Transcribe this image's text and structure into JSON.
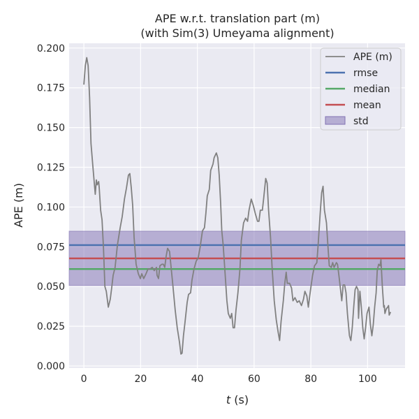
{
  "chart_data": {
    "type": "line",
    "title": "APE w.r.t. translation part (m)",
    "subtitle": "(with Sim(3) Umeyama alignment)",
    "xlabel_italic": "t",
    "xlabel_unit": " (s)",
    "ylabel": "APE (m)",
    "xlim": [
      -5.2,
      113.2
    ],
    "ylim": [
      -0.0013,
      0.203
    ],
    "xticks": [
      0,
      20,
      40,
      60,
      80,
      100
    ],
    "xtick_labels": [
      "0",
      "20",
      "40",
      "60",
      "80",
      "100"
    ],
    "yticks": [
      0,
      0.025,
      0.05,
      0.075,
      0.1,
      0.125,
      0.15,
      0.175,
      0.2
    ],
    "ytick_labels": [
      "0.000",
      "0.025",
      "0.050",
      "0.075",
      "0.100",
      "0.125",
      "0.150",
      "0.175",
      "0.200"
    ],
    "grid": true,
    "legend_position": "top-right",
    "colors": {
      "ape": "#808080",
      "rmse": "#4c72b0",
      "median": "#55a868",
      "mean": "#c44e52",
      "std": "#8172b3",
      "background": "#eaeaf2"
    },
    "legend": [
      "APE (m)",
      "rmse",
      "median",
      "mean",
      "std"
    ],
    "stats": {
      "rmse": 0.076,
      "median": 0.061,
      "mean": 0.0677,
      "std": 0.0171
    },
    "series": [
      {
        "name": "APE (m)",
        "x": [
          0,
          0.5,
          1,
          1.5,
          2,
          2.5,
          3.2,
          4,
          4.4,
          4.7,
          5.2,
          5.4,
          5.9,
          6.4,
          6.9,
          7.4,
          7.9,
          8.6,
          9.3,
          9.8,
          10.3,
          11,
          11.8,
          12.8,
          13.5,
          14.3,
          15,
          15.7,
          16.2,
          16.7,
          17.2,
          17.7,
          18.4,
          19.2,
          19.9,
          20.4,
          21.1,
          21.9,
          22.6,
          23.3,
          24.1,
          24.8,
          25.6,
          25.8,
          26.3,
          26.8,
          27.5,
          28,
          28.5,
          29,
          29.5,
          30.2,
          30.7,
          31.4,
          32.2,
          32.9,
          33.7,
          34.2,
          34.6,
          35.1,
          35.6,
          36.4,
          36.9,
          37.6,
          38.1,
          38.8,
          39.6,
          40.3,
          41,
          41.8,
          42.5,
          43,
          43.5,
          44.2,
          44.7,
          45.5,
          45.9,
          46.7,
          47.2,
          47.7,
          48.2,
          48.6,
          49.1,
          49.6,
          50.4,
          50.9,
          51.6,
          52.1,
          52.6,
          53.1,
          53.6,
          54.3,
          55,
          55.5,
          56.3,
          57,
          57.7,
          58.2,
          59,
          59.7,
          60.4,
          61.2,
          61.7,
          62.2,
          62.9,
          63.4,
          64.1,
          64.6,
          65.1,
          65.8,
          66.3,
          67.1,
          67.8,
          68.5,
          69,
          69.5,
          70.3,
          70.8,
          71.3,
          71.7,
          72.5,
          73.2,
          73.7,
          74.4,
          75.2,
          75.9,
          76.7,
          77.4,
          77.9,
          78.6,
          79.1,
          79.9,
          80.6,
          81.3,
          82.1,
          82.6,
          83.3,
          83.8,
          84.3,
          84.8,
          85.5,
          86,
          86.5,
          87.2,
          87.7,
          88.2,
          89,
          89.4,
          89.9,
          90.4,
          90.9,
          91.4,
          91.9,
          92.4,
          92.9,
          93.6,
          94.1,
          94.6,
          95.1,
          95.6,
          96.1,
          96.6,
          96.8,
          97.3,
          97.8,
          98.3,
          98.8,
          99.3,
          99.8,
          100.5,
          101,
          101.5,
          102,
          102.5,
          103,
          103.4,
          103.9,
          104.4,
          104.7,
          105.2,
          105.7,
          105.9,
          106.1,
          106.6,
          107.1,
          107.4,
          107.6,
          108.1
        ],
        "y": [
          0.177,
          0.189,
          0.194,
          0.189,
          0.169,
          0.14,
          0.125,
          0.108,
          0.117,
          0.114,
          0.116,
          0.112,
          0.098,
          0.092,
          0.074,
          0.05,
          0.047,
          0.037,
          0.042,
          0.049,
          0.057,
          0.062,
          0.076,
          0.087,
          0.094,
          0.105,
          0.112,
          0.12,
          0.121,
          0.112,
          0.101,
          0.081,
          0.064,
          0.058,
          0.055,
          0.058,
          0.055,
          0.058,
          0.061,
          0.061,
          0.062,
          0.06,
          0.062,
          0.057,
          0.055,
          0.063,
          0.064,
          0.064,
          0.062,
          0.069,
          0.074,
          0.072,
          0.063,
          0.05,
          0.035,
          0.024,
          0.015,
          0.0075,
          0.008,
          0.019,
          0.027,
          0.04,
          0.045,
          0.046,
          0.054,
          0.061,
          0.066,
          0.068,
          0.075,
          0.085,
          0.087,
          0.096,
          0.107,
          0.111,
          0.123,
          0.127,
          0.131,
          0.134,
          0.131,
          0.12,
          0.103,
          0.085,
          0.076,
          0.063,
          0.041,
          0.033,
          0.03,
          0.033,
          0.024,
          0.024,
          0.035,
          0.046,
          0.061,
          0.079,
          0.09,
          0.093,
          0.091,
          0.098,
          0.105,
          0.101,
          0.096,
          0.091,
          0.091,
          0.098,
          0.098,
          0.106,
          0.118,
          0.115,
          0.098,
          0.081,
          0.063,
          0.041,
          0.029,
          0.021,
          0.016,
          0.028,
          0.041,
          0.052,
          0.059,
          0.052,
          0.052,
          0.049,
          0.041,
          0.043,
          0.04,
          0.041,
          0.038,
          0.042,
          0.047,
          0.044,
          0.037,
          0.048,
          0.057,
          0.063,
          0.065,
          0.077,
          0.096,
          0.109,
          0.113,
          0.098,
          0.09,
          0.076,
          0.063,
          0.062,
          0.065,
          0.062,
          0.065,
          0.064,
          0.057,
          0.049,
          0.041,
          0.051,
          0.051,
          0.046,
          0.033,
          0.019,
          0.016,
          0.024,
          0.037,
          0.048,
          0.05,
          0.048,
          0.03,
          0.047,
          0.037,
          0.024,
          0.017,
          0.024,
          0.033,
          0.037,
          0.026,
          0.019,
          0.026,
          0.037,
          0.046,
          0.06,
          0.064,
          0.063,
          0.067,
          0.05,
          0.037,
          0.038,
          0.033,
          0.036,
          0.037,
          0.038,
          0.032,
          0.034
        ]
      }
    ]
  }
}
